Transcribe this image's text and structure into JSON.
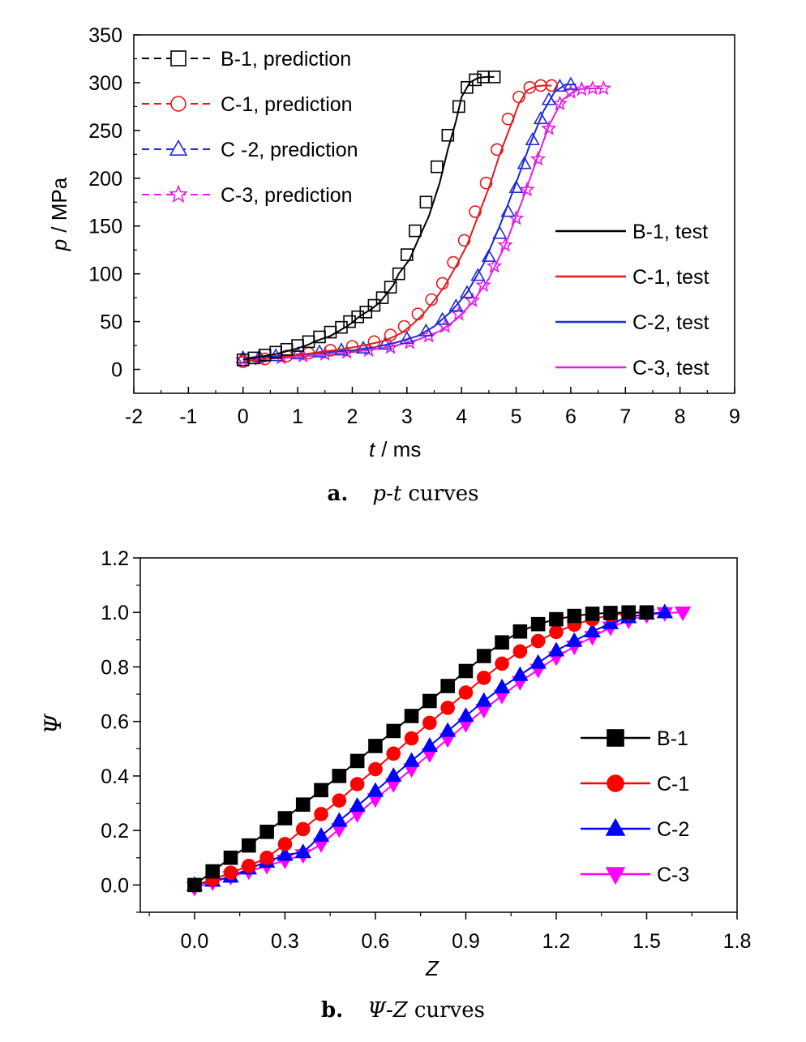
{
  "chart_data": [
    {
      "type": "line",
      "panel_label": "a.",
      "caption_suffix": "curves",
      "caption_x_symbol": "p",
      "caption_y_symbol": "t",
      "xlabel_symbol": "t",
      "xlabel_unit": "/ ms",
      "ylabel_symbol": "p",
      "ylabel_unit": "/ MPa",
      "xlim": [
        -2,
        9
      ],
      "ylim": [
        -25,
        350
      ],
      "x_ticks": [
        "-2",
        "-1",
        "0",
        "1",
        "2",
        "3",
        "4",
        "5",
        "6",
        "7",
        "8",
        "9"
      ],
      "y_ticks": [
        "0",
        "50",
        "100",
        "150",
        "200",
        "250",
        "300",
        "350"
      ],
      "legend_prediction": [
        "B-1, prediction",
        "C-1, prediction",
        "C -2, prediction",
        "C-3, prediction"
      ],
      "legend_test": [
        "B-1, test",
        "C-1, test",
        "C-2, test",
        "C-3, test"
      ],
      "series": [
        {
          "name": "B-1",
          "color": "#000000",
          "marker": "square",
          "x": [
            0.0,
            0.2,
            0.4,
            0.6,
            0.8,
            1.0,
            1.1,
            1.2,
            1.3,
            1.45,
            1.6,
            1.75,
            1.9,
            2.0,
            2.1,
            2.2,
            2.35,
            2.5,
            2.6,
            2.75,
            2.85,
            3.05,
            3.2,
            3.4,
            3.6,
            3.75,
            3.9,
            4.0,
            4.15,
            4.3,
            4.45,
            4.6
          ],
          "y": [
            10,
            12,
            14,
            16,
            19,
            22,
            24,
            26,
            29,
            32,
            35,
            40,
            45,
            49,
            54,
            58,
            63,
            70,
            77,
            88,
            100,
            115,
            135,
            160,
            195,
            230,
            260,
            285,
            300,
            305,
            306,
            306
          ],
          "marker_x": [
            0.0,
            0.2,
            0.4,
            0.6,
            0.8,
            1.0,
            1.2,
            1.4,
            1.6,
            1.8,
            1.95,
            2.1,
            2.25,
            2.4,
            2.55,
            2.7,
            2.85,
            3.0,
            3.15,
            3.35,
            3.55,
            3.75,
            3.95,
            4.1,
            4.25,
            4.4,
            4.6
          ],
          "marker_y": [
            10,
            12,
            15,
            18,
            21,
            25,
            29,
            34,
            39,
            44,
            50,
            55,
            60,
            67,
            75,
            86,
            100,
            120,
            145,
            175,
            212,
            245,
            275,
            295,
            303,
            306,
            306
          ]
        },
        {
          "name": "C-1",
          "color": "#e41a1c",
          "marker": "circle",
          "x": [
            0.0,
            0.3,
            0.6,
            1.0,
            1.4,
            1.8,
            2.2,
            2.6,
            2.9,
            3.1,
            3.3,
            3.5,
            3.7,
            3.9,
            4.1,
            4.3,
            4.5,
            4.7,
            4.9,
            5.05,
            5.2,
            5.35,
            5.5,
            5.65
          ],
          "y": [
            8,
            10,
            12,
            15,
            18,
            21,
            25,
            30,
            38,
            47,
            58,
            72,
            88,
            108,
            130,
            160,
            190,
            225,
            255,
            278,
            292,
            296,
            297,
            297
          ],
          "marker_x": [
            0.0,
            0.4,
            0.8,
            1.2,
            1.6,
            2.0,
            2.4,
            2.7,
            2.95,
            3.2,
            3.45,
            3.65,
            3.85,
            4.05,
            4.25,
            4.45,
            4.65,
            4.85,
            5.05,
            5.25,
            5.45,
            5.65
          ],
          "marker_y": [
            8,
            11,
            14,
            17,
            20,
            24,
            29,
            36,
            45,
            58,
            73,
            90,
            112,
            135,
            165,
            195,
            230,
            262,
            285,
            295,
            297,
            297
          ]
        },
        {
          "name": "C-2",
          "color": "#1f2bd6",
          "marker": "triangle",
          "x": [
            0.0,
            0.4,
            0.8,
            1.2,
            1.6,
            2.0,
            2.4,
            2.8,
            3.2,
            3.5,
            3.8,
            4.1,
            4.4,
            4.7,
            5.0,
            5.25,
            5.5,
            5.7,
            5.9,
            6.1
          ],
          "y": [
            12,
            13,
            14,
            16,
            18,
            20,
            23,
            28,
            35,
            45,
            60,
            80,
            110,
            150,
            195,
            235,
            270,
            290,
            298,
            298
          ],
          "marker_x": [
            0.0,
            0.3,
            0.6,
            1.0,
            1.4,
            1.8,
            2.2,
            2.6,
            3.0,
            3.35,
            3.65,
            3.9,
            4.1,
            4.3,
            4.5,
            4.7,
            4.85,
            5.0,
            5.15,
            5.3,
            5.45,
            5.6,
            5.8,
            6.0
          ],
          "marker_y": [
            12,
            13,
            14,
            16,
            18,
            20,
            22,
            26,
            32,
            40,
            52,
            66,
            80,
            98,
            118,
            142,
            165,
            190,
            215,
            240,
            262,
            282,
            296,
            298
          ]
        },
        {
          "name": "C-3",
          "color": "#e61ee6",
          "marker": "star",
          "x": [
            0.0,
            0.4,
            0.8,
            1.2,
            1.6,
            2.0,
            2.4,
            2.8,
            3.2,
            3.6,
            3.9,
            4.2,
            4.5,
            4.8,
            5.1,
            5.35,
            5.6,
            5.85,
            6.1,
            6.35,
            6.6
          ],
          "y": [
            10,
            11,
            12,
            14,
            16,
            18,
            21,
            25,
            31,
            40,
            52,
            70,
            95,
            130,
            175,
            215,
            255,
            282,
            293,
            294,
            294
          ],
          "marker_x": [
            0.0,
            0.3,
            0.7,
            1.1,
            1.5,
            1.9,
            2.3,
            2.7,
            3.05,
            3.4,
            3.7,
            3.95,
            4.2,
            4.4,
            4.6,
            4.8,
            5.0,
            5.2,
            5.4,
            5.6,
            5.8,
            6.0,
            6.2,
            6.4,
            6.6
          ],
          "marker_y": [
            10,
            11,
            12,
            14,
            16,
            18,
            20,
            23,
            28,
            35,
            45,
            58,
            72,
            88,
            108,
            130,
            158,
            188,
            220,
            252,
            278,
            290,
            293,
            294,
            294
          ]
        }
      ]
    },
    {
      "type": "line",
      "panel_label": "b.",
      "caption_suffix": "curves",
      "caption_x_symbol": "Ψ",
      "caption_y_symbol": "Z",
      "xlabel": "Z",
      "ylabel": "Ψ",
      "xlim": [
        -0.18,
        1.8
      ],
      "ylim": [
        -0.1,
        1.2
      ],
      "x_ticks": [
        "0.0",
        "0.3",
        "0.6",
        "0.9",
        "1.2",
        "1.5",
        "1.8"
      ],
      "y_ticks": [
        "0.0",
        "0.2",
        "0.4",
        "0.6",
        "0.8",
        "1.0",
        "1.2"
      ],
      "legend": [
        "B-1",
        "C-1",
        "C-2",
        "C-3"
      ],
      "series": [
        {
          "name": "B-1",
          "color": "#000000",
          "marker": "square",
          "x": [
            0.0,
            0.06,
            0.12,
            0.18,
            0.24,
            0.3,
            0.36,
            0.42,
            0.48,
            0.54,
            0.6,
            0.66,
            0.72,
            0.78,
            0.84,
            0.9,
            0.96,
            1.02,
            1.08,
            1.14,
            1.2,
            1.26,
            1.32,
            1.38,
            1.44,
            1.5
          ],
          "y": [
            0.0,
            0.05,
            0.1,
            0.145,
            0.195,
            0.245,
            0.295,
            0.348,
            0.4,
            0.455,
            0.51,
            0.565,
            0.62,
            0.675,
            0.73,
            0.785,
            0.84,
            0.89,
            0.93,
            0.957,
            0.975,
            0.987,
            0.995,
            0.998,
            1.0,
            1.0
          ]
        },
        {
          "name": "C-1",
          "color": "#ff0000",
          "marker": "circle",
          "x": [
            0.0,
            0.06,
            0.12,
            0.18,
            0.24,
            0.3,
            0.36,
            0.42,
            0.48,
            0.54,
            0.6,
            0.66,
            0.72,
            0.78,
            0.84,
            0.9,
            0.96,
            1.02,
            1.08,
            1.14,
            1.2,
            1.26,
            1.32,
            1.38,
            1.44,
            1.5
          ],
          "y": [
            0.0,
            0.02,
            0.045,
            0.07,
            0.1,
            0.15,
            0.205,
            0.26,
            0.31,
            0.37,
            0.425,
            0.482,
            0.538,
            0.595,
            0.65,
            0.706,
            0.76,
            0.812,
            0.857,
            0.895,
            0.928,
            0.955,
            0.975,
            0.99,
            0.997,
            1.0
          ]
        },
        {
          "name": "C-2",
          "color": "#0000ff",
          "marker": "triangle-up",
          "x": [
            0.0,
            0.06,
            0.12,
            0.18,
            0.24,
            0.3,
            0.36,
            0.42,
            0.48,
            0.54,
            0.6,
            0.66,
            0.72,
            0.78,
            0.84,
            0.9,
            0.96,
            1.02,
            1.08,
            1.14,
            1.2,
            1.26,
            1.32,
            1.38,
            1.44,
            1.5,
            1.56
          ],
          "y": [
            0.0,
            0.015,
            0.03,
            0.06,
            0.085,
            0.11,
            0.12,
            0.18,
            0.235,
            0.29,
            0.345,
            0.4,
            0.455,
            0.51,
            0.565,
            0.62,
            0.675,
            0.725,
            0.77,
            0.815,
            0.86,
            0.895,
            0.93,
            0.96,
            0.982,
            0.995,
            1.0
          ]
        },
        {
          "name": "C-3",
          "color": "#ff00ff",
          "marker": "triangle-down",
          "x": [
            0.0,
            0.06,
            0.12,
            0.18,
            0.24,
            0.3,
            0.36,
            0.42,
            0.48,
            0.54,
            0.6,
            0.66,
            0.72,
            0.78,
            0.84,
            0.9,
            0.96,
            1.02,
            1.08,
            1.14,
            1.2,
            1.26,
            1.32,
            1.38,
            1.44,
            1.5,
            1.56,
            1.62
          ],
          "y": [
            -0.01,
            0.01,
            0.03,
            0.05,
            0.07,
            0.09,
            0.11,
            0.15,
            0.205,
            0.26,
            0.315,
            0.37,
            0.425,
            0.48,
            0.535,
            0.59,
            0.643,
            0.695,
            0.745,
            0.79,
            0.835,
            0.875,
            0.91,
            0.945,
            0.97,
            0.99,
            0.998,
            1.0
          ]
        }
      ]
    }
  ]
}
